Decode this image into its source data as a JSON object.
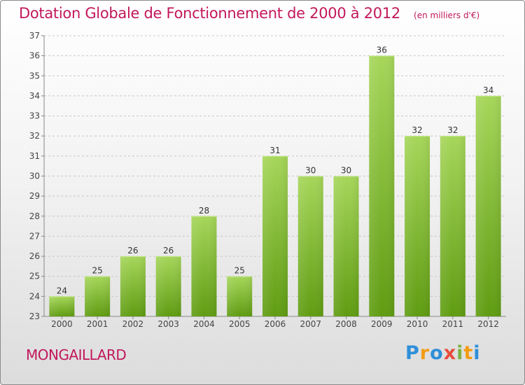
{
  "header": {
    "title": "Dotation Globale de Fonctionnement de 2000 à 2012",
    "subtitle": "(en milliers d'€)"
  },
  "commune": "MONGAILLARD",
  "logo": {
    "text": "Proxiti"
  },
  "colors": {
    "title": "#c2185b",
    "bar_light": "#a6d65a",
    "bar_dark": "#5f9c12"
  },
  "chart_data": {
    "type": "bar",
    "title": "Dotation Globale de Fonctionnement de 2000 à 2012",
    "subtitle": "(en milliers d'€)",
    "categories": [
      "2000",
      "2001",
      "2002",
      "2003",
      "2004",
      "2005",
      "2006",
      "2007",
      "2008",
      "2009",
      "2010",
      "2011",
      "2012"
    ],
    "values": [
      24,
      25,
      26,
      26,
      28,
      25,
      31,
      30,
      30,
      36,
      32,
      32,
      34
    ],
    "ylim": [
      23,
      37
    ],
    "yticks": [
      23,
      24,
      25,
      26,
      27,
      28,
      29,
      30,
      31,
      32,
      33,
      34,
      35,
      36,
      37
    ],
    "grid": "horizontal-dashed",
    "legend": "none"
  }
}
